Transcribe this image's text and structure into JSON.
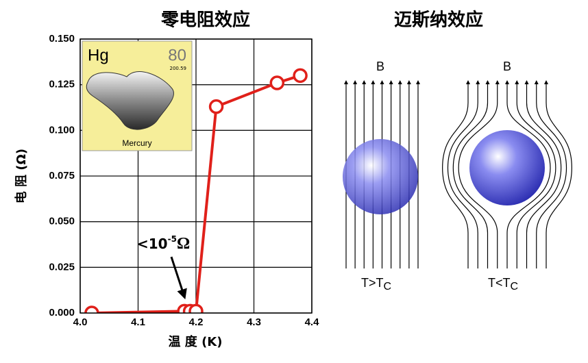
{
  "chart_data": {
    "type": "line",
    "title": "零电阻效应",
    "xlabel": "温 度 (K)",
    "ylabel": "电 阻 (Ω)",
    "x": [
      4.02,
      4.18,
      4.19,
      4.2,
      4.235,
      4.34,
      4.38
    ],
    "series": [
      {
        "color": "#e0201a",
        "values": [
          0.0,
          0.001,
          0.001,
          0.001,
          0.113,
          0.126,
          0.13
        ]
      }
    ],
    "xlim": [
      4.0,
      4.4
    ],
    "xticks": [
      {
        "value": 4.0,
        "label": "4.0"
      },
      4.1,
      4.2,
      4.3,
      4.4
    ],
    "ylim": [
      0,
      0.15
    ],
    "yticks": [
      {
        "value": 0,
        "label": "0.000"
      },
      0.025,
      {
        "value": 0.05,
        "label": "0.050"
      },
      0.075,
      {
        "value": 0.1,
        "label": "0.100"
      },
      0.125,
      {
        "value": 0.15,
        "label": "0.150"
      }
    ],
    "grid": true,
    "annotation": {
      "base": "<10",
      "exponent": "-5",
      "unit": "Ω"
    },
    "inset": {
      "symbol": "Hg",
      "number": "80",
      "mass": "200.59",
      "name": "Mercury"
    }
  },
  "meissner": {
    "title": "迈斯纳效应",
    "panels": [
      {
        "field_label": "B",
        "condition": "T>T",
        "subscript": "C"
      },
      {
        "field_label": "B",
        "condition": "T<T",
        "subscript": "C"
      }
    ]
  }
}
